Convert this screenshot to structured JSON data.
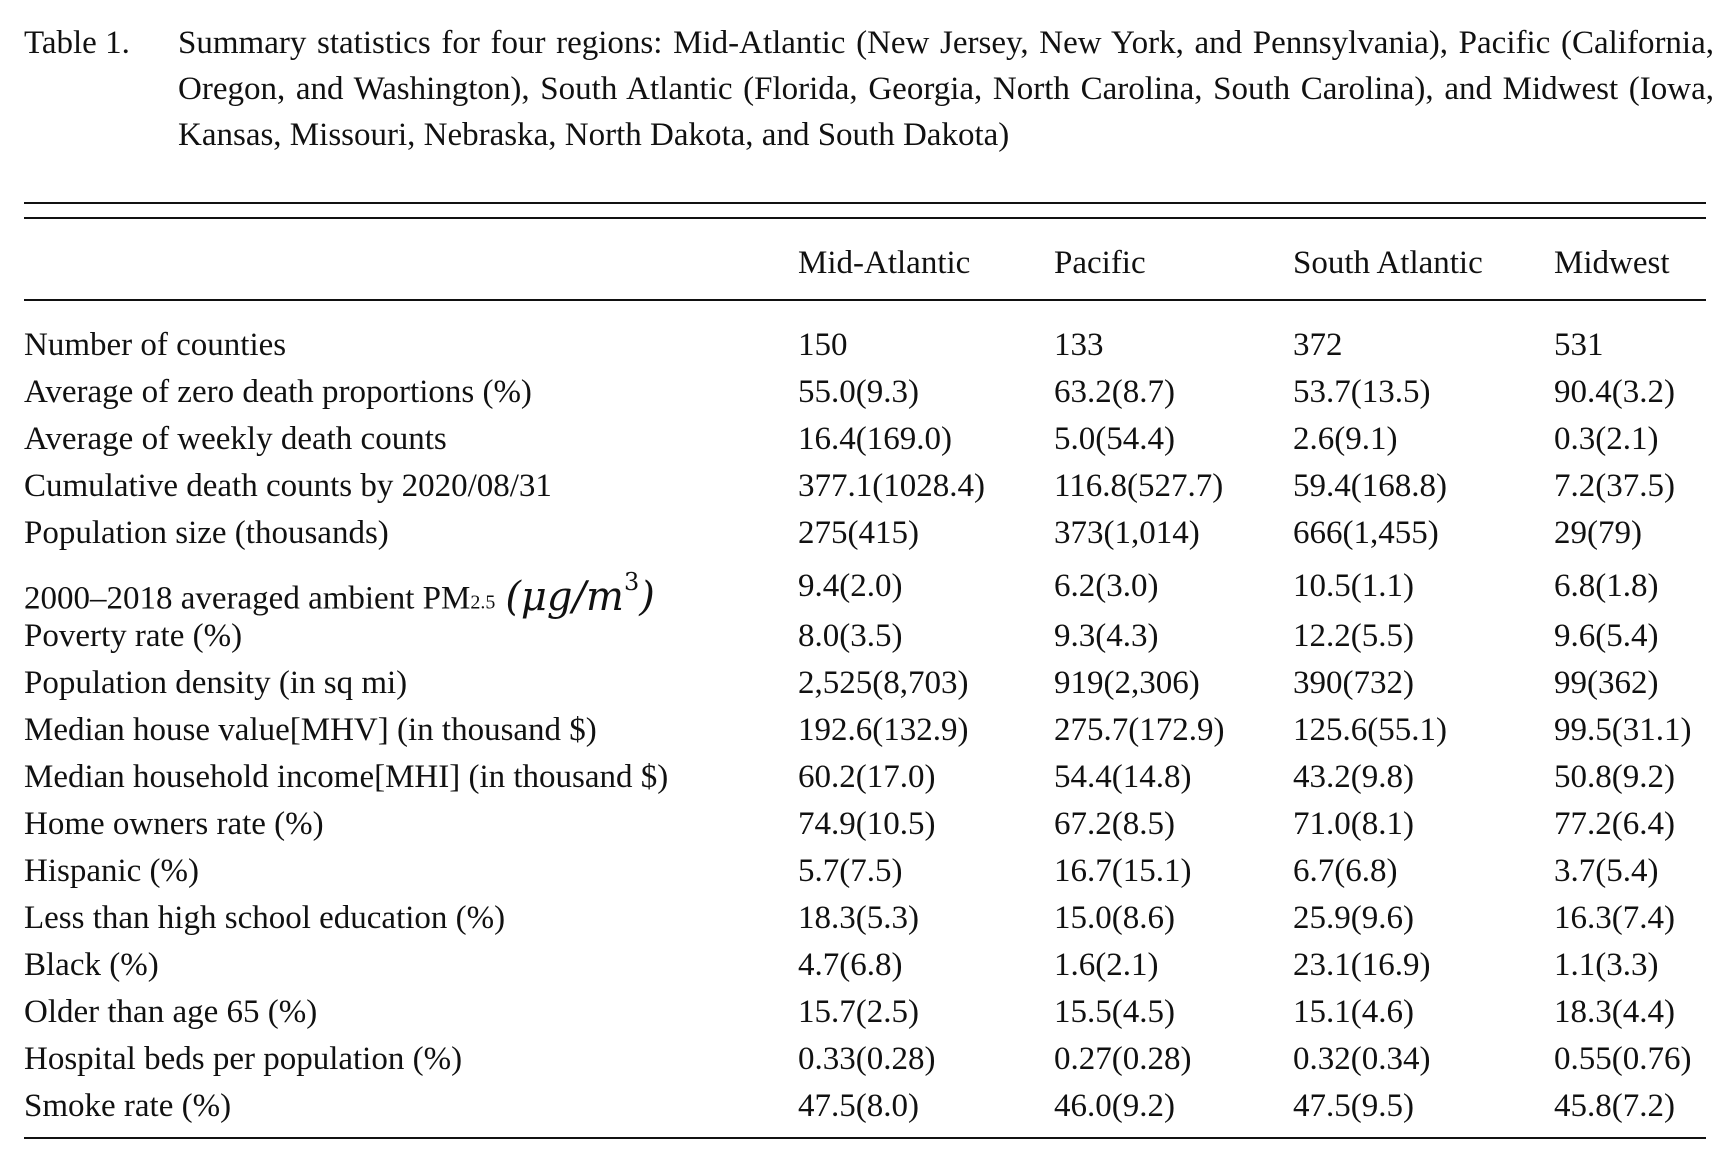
{
  "caption": {
    "label": "Table 1.",
    "text": "Summary statistics for four regions: Mid-Atlantic (New Jersey, New York, and Pennsylvania), Pacific (California, Oregon, and Washington), South Atlantic (Florida, Georgia, North Carolina, South Carolina), and Midwest (Iowa, Kansas, Missouri, Nebraska, North Dakota, and South Dakota)"
  },
  "table": {
    "columns": [
      "",
      "Mid-Atlantic",
      "Pacific",
      "South Atlantic",
      "Midwest"
    ],
    "pm_row": {
      "label_prefix": "2000–2018 averaged ambient PM",
      "label_subscript": "2.5",
      "unit_base": "(μg/m",
      "unit_exponent": "3",
      "unit_close": ")"
    },
    "rows": [
      {
        "label": "Number of counties",
        "values": [
          "150",
          "133",
          "372",
          "531"
        ]
      },
      {
        "label": "Average of zero death proportions (%)",
        "values": [
          "55.0(9.3)",
          "63.2(8.7)",
          "53.7(13.5)",
          "90.4(3.2)"
        ]
      },
      {
        "label": "Average of weekly death counts",
        "values": [
          "16.4(169.0)",
          "5.0(54.4)",
          "2.6(9.1)",
          "0.3(2.1)"
        ]
      },
      {
        "label": "Cumulative death counts by 2020/08/31",
        "values": [
          "377.1(1028.4)",
          "116.8(527.7)",
          "59.4(168.8)",
          "7.2(37.5)"
        ]
      },
      {
        "label": "Population size (thousands)",
        "values": [
          "275(415)",
          "373(1,014)",
          "666(1,455)",
          "29(79)"
        ]
      },
      {
        "label": "",
        "values": [
          "9.4(2.0)",
          "6.2(3.0)",
          "10.5(1.1)",
          "6.8(1.8)"
        ]
      },
      {
        "label": "Poverty rate (%)",
        "values": [
          "8.0(3.5)",
          "9.3(4.3)",
          "12.2(5.5)",
          "9.6(5.4)"
        ]
      },
      {
        "label": "Population density (in sq mi)",
        "values": [
          "2,525(8,703)",
          "919(2,306)",
          "390(732)",
          "99(362)"
        ]
      },
      {
        "label": "Median house value[MHV] (in thousand $)",
        "values": [
          "192.6(132.9)",
          "275.7(172.9)",
          "125.6(55.1)",
          "99.5(31.1)"
        ]
      },
      {
        "label": "Median household income[MHI] (in thousand $)",
        "values": [
          "60.2(17.0)",
          "54.4(14.8)",
          "43.2(9.8)",
          "50.8(9.2)"
        ]
      },
      {
        "label": "Home owners rate (%)",
        "values": [
          "74.9(10.5)",
          "67.2(8.5)",
          "71.0(8.1)",
          "77.2(6.4)"
        ]
      },
      {
        "label": "Hispanic (%)",
        "values": [
          "5.7(7.5)",
          "16.7(15.1)",
          "6.7(6.8)",
          "3.7(5.4)"
        ]
      },
      {
        "label": "Less than high school education (%)",
        "values": [
          "18.3(5.3)",
          "15.0(8.6)",
          "25.9(9.6)",
          "16.3(7.4)"
        ]
      },
      {
        "label": "Black (%)",
        "values": [
          "4.7(6.8)",
          "1.6(2.1)",
          "23.1(16.9)",
          "1.1(3.3)"
        ]
      },
      {
        "label": "Older than age 65 (%)",
        "values": [
          "15.7(2.5)",
          "15.5(4.5)",
          "15.1(4.6)",
          "18.3(4.4)"
        ]
      },
      {
        "label": "Hospital beds per population (%)",
        "values": [
          "0.33(0.28)",
          "0.27(0.28)",
          "0.32(0.34)",
          "0.55(0.76)"
        ]
      },
      {
        "label": "Smoke rate (%)",
        "values": [
          "47.5(8.0)",
          "46.0(9.2)",
          "47.5(9.5)",
          "45.8(7.2)"
        ]
      }
    ]
  }
}
